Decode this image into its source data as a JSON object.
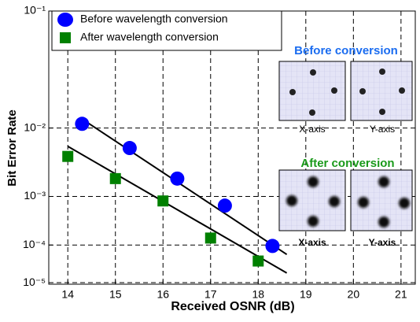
{
  "chart_data": {
    "type": "scatter",
    "xlabel": "Received OSNR (dB)",
    "ylabel": "Bit Error Rate",
    "xlim": [
      13.6,
      21.3
    ],
    "xticks": [
      14,
      15,
      16,
      17,
      18,
      19,
      20,
      21
    ],
    "ylim": [
      0.1,
      9e-06
    ],
    "yscale": "ber",
    "yticks": [
      {
        "value": 0.1,
        "label": "10⁻¹"
      },
      {
        "value": 0.01,
        "label": "10⁻²"
      },
      {
        "value": 0.001,
        "label": "10⁻³"
      },
      {
        "value": 0.0001,
        "label": "10⁻⁴"
      },
      {
        "value": 1e-05,
        "label": "10⁻⁵"
      }
    ],
    "grid": true,
    "legend": "upper left",
    "series": [
      {
        "name": "Before wavelength conversion",
        "color": "#0000ff",
        "marker": "circle",
        "x": [
          14.3,
          15.3,
          16.3,
          17.3,
          18.3
        ],
        "values": [
          0.0112,
          0.0056,
          0.002,
          0.00068,
          9.5e-05
        ]
      },
      {
        "name": "After wavelength conversion",
        "color": "#008000",
        "marker": "square",
        "x": [
          14,
          15,
          16,
          17,
          18
        ],
        "values": [
          0.0043,
          0.002,
          0.00083,
          0.000145,
          4e-05
        ]
      }
    ],
    "fits": [
      {
        "color": "#000000",
        "x": [
          14.3,
          18.6
        ],
        "values": [
          0.0127,
          5.9e-05
        ]
      },
      {
        "color": "#000000",
        "x": [
          14.0,
          18.6
        ],
        "values": [
          0.0059,
          1.9e-05
        ]
      }
    ],
    "insets": {
      "before_title": "Before conversion",
      "before_x": "X-axis",
      "before_y": "Y-axis",
      "after_title": "After conversion",
      "after_x": "X-axis",
      "after_y": "Y-axis"
    }
  }
}
